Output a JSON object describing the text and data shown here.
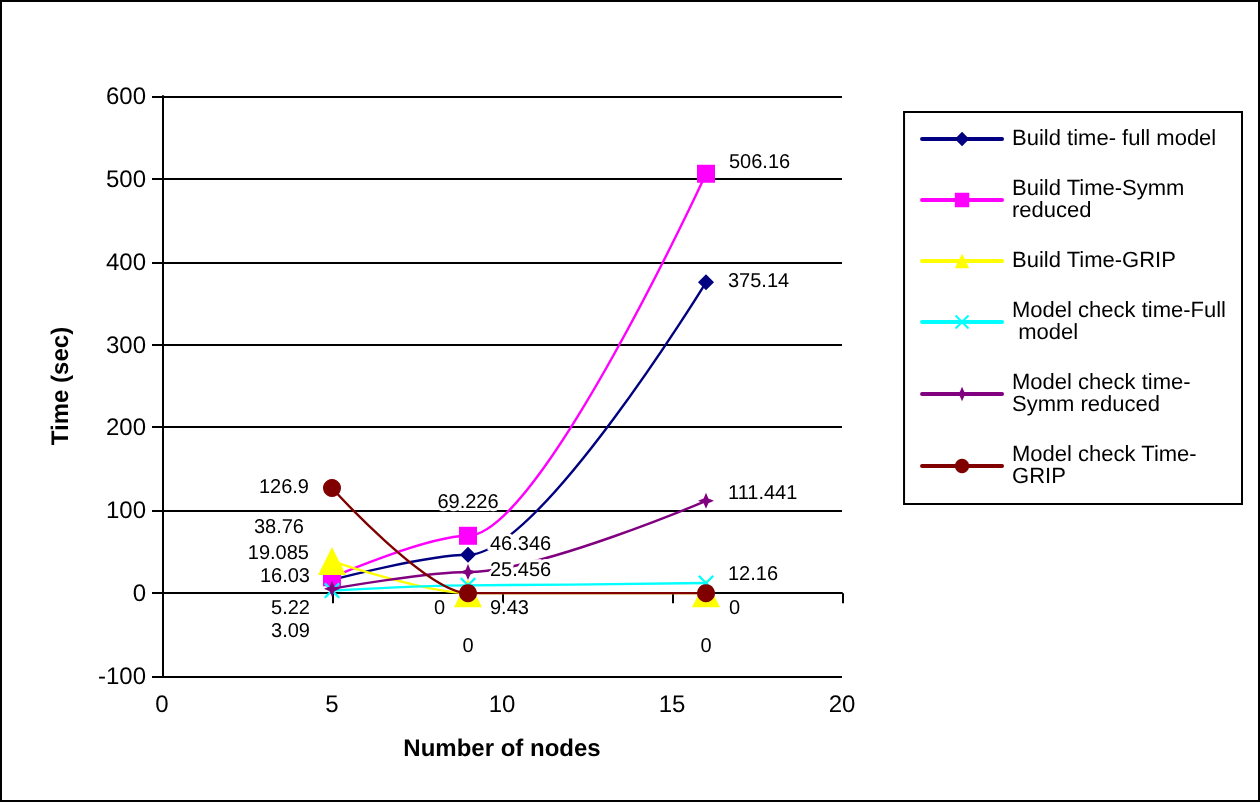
{
  "chart_data": {
    "type": "line",
    "xlabel": "Number of nodes",
    "ylabel": "Time (sec)",
    "x": [
      5,
      9,
      16
    ],
    "xlim": [
      0,
      20
    ],
    "xticks": [
      0,
      5,
      10,
      15,
      20
    ],
    "ylim": [
      -100,
      600
    ],
    "yticks": [
      -100,
      0,
      100,
      200,
      300,
      400,
      500,
      600
    ],
    "grid": "y",
    "legend": "right",
    "line_style": "solid",
    "data_labels": true,
    "series": [
      {
        "name": "Build time- full model",
        "color": "#000080",
        "marker": "diamond",
        "values": [
          16.03,
          46.346,
          375.14
        ]
      },
      {
        "name": "Build Time-Symm reduced",
        "color": "#ff00ff",
        "marker": "square",
        "values": [
          19.085,
          69.226,
          506.16
        ]
      },
      {
        "name": "Build Time-GRIP",
        "color": "#ffff00",
        "marker": "triangle",
        "values": [
          38.76,
          0,
          0
        ]
      },
      {
        "name": "Model check time-Full model",
        "color": "#00ffff",
        "marker": "cross",
        "values": [
          3.09,
          9.43,
          12.16
        ]
      },
      {
        "name": "Model check time- Symm reduced",
        "color": "#800080",
        "marker": "star",
        "values": [
          5.22,
          25.456,
          111.441
        ]
      },
      {
        "name": "Model check Time- GRIP",
        "color": "#800000",
        "marker": "circle",
        "values": [
          126.9,
          0,
          0
        ]
      }
    ]
  }
}
